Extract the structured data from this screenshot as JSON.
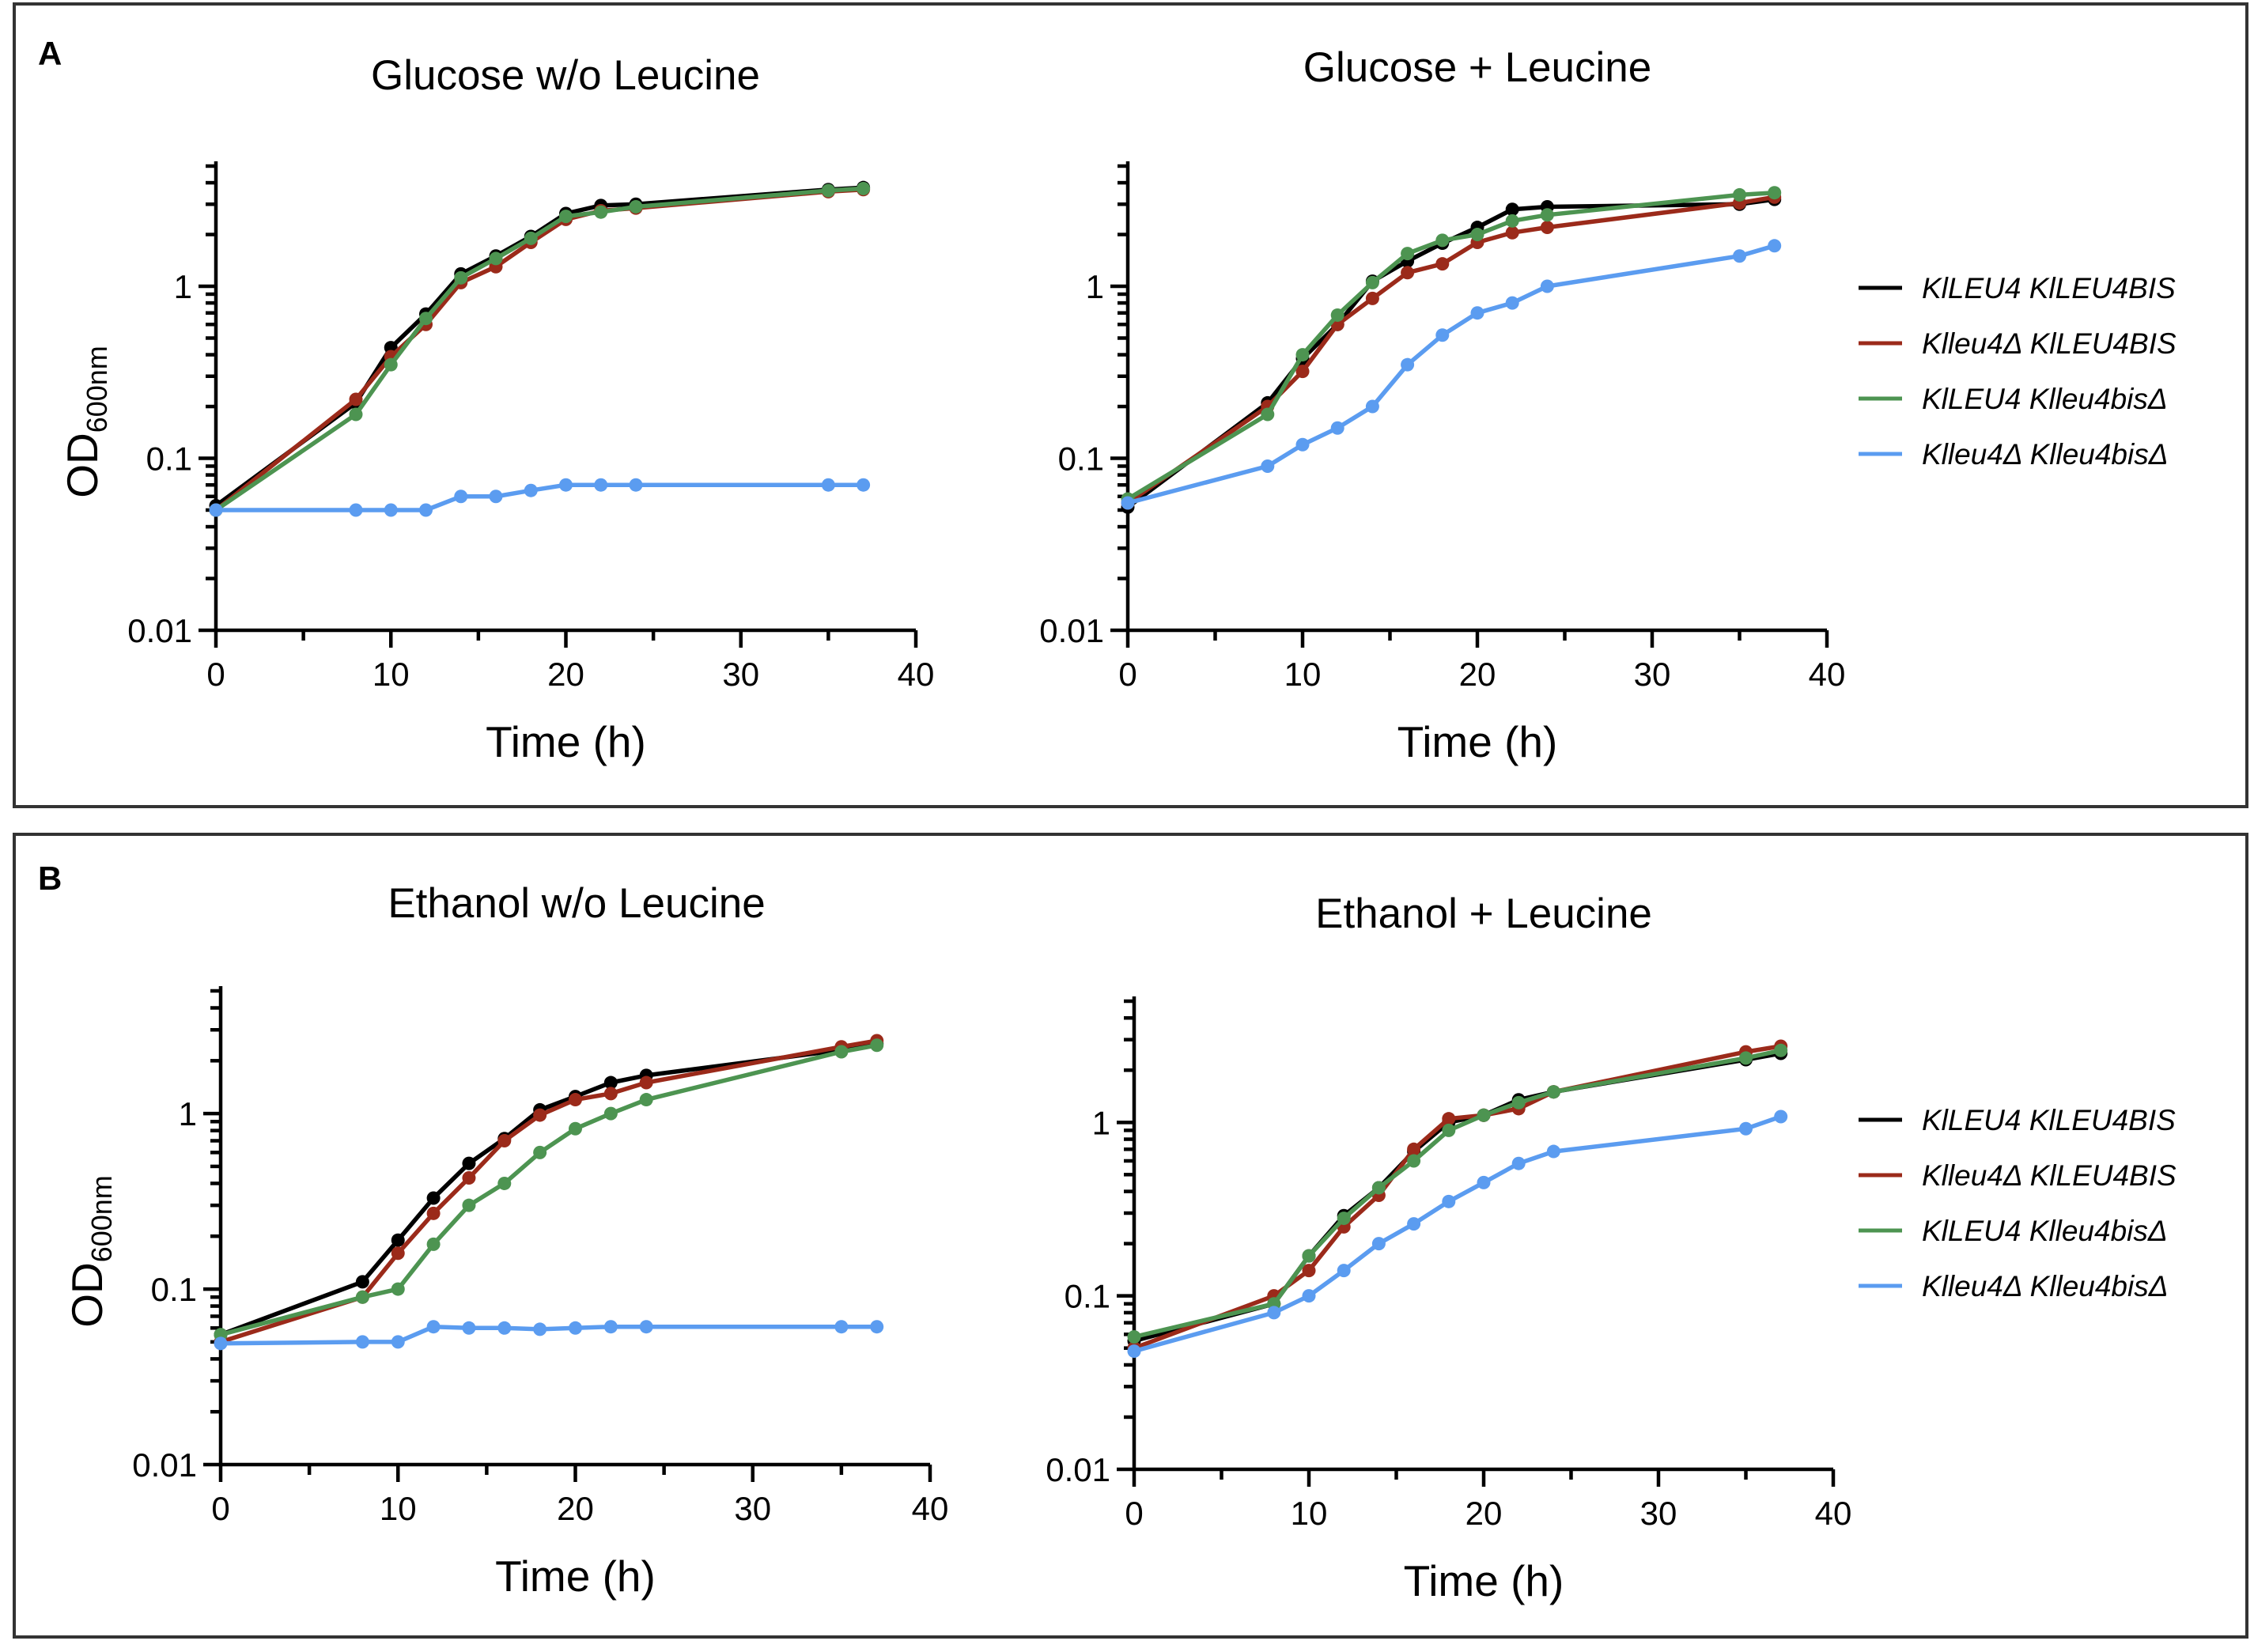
{
  "figure": {
    "panels": [
      {
        "letter": "A"
      },
      {
        "letter": "B"
      }
    ]
  },
  "chart_data": [
    {
      "type": "line",
      "panel": "A",
      "title": "Glucose w/o Leucine",
      "xlabel": "Time (h)",
      "ylabel_main": "OD",
      "ylabel_sub": "600nm",
      "xlim": [
        0,
        40
      ],
      "ylim": [
        0.01,
        5
      ],
      "yscale": "log",
      "xticks": [
        0,
        10,
        20,
        30,
        40
      ],
      "yticks": [
        0.01,
        0.1,
        1
      ],
      "yticks_labels": [
        "0.01",
        "0.1",
        "1"
      ],
      "legend": true,
      "series": [
        {
          "name": "KlLEU4 KlLEU4BIS",
          "color": "#000000",
          "points": [
            [
              0,
              0.053
            ],
            [
              8,
              0.21
            ],
            [
              10,
              0.44
            ],
            [
              12,
              0.69
            ],
            [
              14,
              1.18
            ],
            [
              16,
              1.5
            ],
            [
              18,
              1.95
            ],
            [
              20,
              2.65
            ],
            [
              22,
              2.95
            ],
            [
              24,
              3.0
            ],
            [
              35,
              3.65
            ],
            [
              37,
              3.75
            ]
          ]
        },
        {
          "name": "Klleu4Δ KlLEU4BIS",
          "color": "#9b2a1a",
          "points": [
            [
              0,
              0.05
            ],
            [
              8,
              0.22
            ],
            [
              10,
              0.39
            ],
            [
              12,
              0.6
            ],
            [
              14,
              1.05
            ],
            [
              16,
              1.3
            ],
            [
              18,
              1.8
            ],
            [
              20,
              2.45
            ],
            [
              22,
              2.75
            ],
            [
              24,
              2.85
            ],
            [
              35,
              3.55
            ],
            [
              37,
              3.65
            ]
          ]
        },
        {
          "name": "KlLEU4 Klleu4bisΔ",
          "color": "#4d9451",
          "points": [
            [
              0,
              0.05
            ],
            [
              8,
              0.18
            ],
            [
              10,
              0.35
            ],
            [
              12,
              0.65
            ],
            [
              14,
              1.12
            ],
            [
              16,
              1.45
            ],
            [
              18,
              1.9
            ],
            [
              20,
              2.55
            ],
            [
              22,
              2.7
            ],
            [
              24,
              2.9
            ],
            [
              35,
              3.6
            ],
            [
              37,
              3.7
            ]
          ]
        },
        {
          "name": "Klleu4Δ Klleu4bisΔ",
          "color": "#5b9cf0",
          "points": [
            [
              0,
              0.05
            ],
            [
              8,
              0.05
            ],
            [
              10,
              0.05
            ],
            [
              12,
              0.05
            ],
            [
              14,
              0.06
            ],
            [
              16,
              0.06
            ],
            [
              18,
              0.065
            ],
            [
              20,
              0.07
            ],
            [
              22,
              0.07
            ],
            [
              24,
              0.07
            ],
            [
              35,
              0.07
            ],
            [
              37,
              0.07
            ]
          ]
        }
      ]
    },
    {
      "type": "line",
      "panel": "A",
      "title": "Glucose + Leucine",
      "xlabel": "Time (h)",
      "ylabel_main": "",
      "ylabel_sub": "",
      "xlim": [
        0,
        40
      ],
      "ylim": [
        0.01,
        5
      ],
      "yscale": "log",
      "xticks": [
        0,
        10,
        20,
        30,
        40
      ],
      "yticks": [
        0.01,
        0.1,
        1
      ],
      "yticks_labels": [
        "0.01",
        "0.1",
        "1"
      ],
      "legend": true,
      "series": [
        {
          "name": "KlLEU4 KlLEU4BIS",
          "color": "#000000",
          "points": [
            [
              0,
              0.052
            ],
            [
              8,
              0.21
            ],
            [
              10,
              0.38
            ],
            [
              12,
              0.6
            ],
            [
              14,
              1.07
            ],
            [
              16,
              1.4
            ],
            [
              18,
              1.78
            ],
            [
              20,
              2.2
            ],
            [
              22,
              2.8
            ],
            [
              24,
              2.9
            ],
            [
              35,
              3.0
            ],
            [
              37,
              3.2
            ]
          ]
        },
        {
          "name": "Klleu4Δ KlLEU4BIS",
          "color": "#9b2a1a",
          "points": [
            [
              0,
              0.055
            ],
            [
              8,
              0.2
            ],
            [
              10,
              0.32
            ],
            [
              12,
              0.6
            ],
            [
              14,
              0.85
            ],
            [
              16,
              1.2
            ],
            [
              18,
              1.35
            ],
            [
              20,
              1.8
            ],
            [
              22,
              2.05
            ],
            [
              24,
              2.2
            ],
            [
              35,
              3.05
            ],
            [
              37,
              3.3
            ]
          ]
        },
        {
          "name": "KlLEU4 Klleu4bisΔ",
          "color": "#4d9451",
          "points": [
            [
              0,
              0.058
            ],
            [
              8,
              0.18
            ],
            [
              10,
              0.4
            ],
            [
              12,
              0.68
            ],
            [
              14,
              1.05
            ],
            [
              16,
              1.55
            ],
            [
              18,
              1.85
            ],
            [
              20,
              2.0
            ],
            [
              22,
              2.4
            ],
            [
              24,
              2.6
            ],
            [
              35,
              3.4
            ],
            [
              37,
              3.5
            ]
          ]
        },
        {
          "name": "Klleu4Δ Klleu4bisΔ",
          "color": "#5b9cf0",
          "points": [
            [
              0,
              0.055
            ],
            [
              8,
              0.09
            ],
            [
              10,
              0.12
            ],
            [
              12,
              0.15
            ],
            [
              14,
              0.2
            ],
            [
              16,
              0.35
            ],
            [
              18,
              0.52
            ],
            [
              20,
              0.7
            ],
            [
              22,
              0.8
            ],
            [
              24,
              1.0
            ],
            [
              35,
              1.5
            ],
            [
              37,
              1.72
            ]
          ]
        }
      ]
    },
    {
      "type": "line",
      "panel": "B",
      "title": "Ethanol w/o Leucine",
      "xlabel": "Time (h)",
      "ylabel_main": "OD",
      "ylabel_sub": "600nm",
      "xlim": [
        0,
        40
      ],
      "ylim": [
        0.01,
        5
      ],
      "yscale": "log",
      "xticks": [
        0,
        10,
        20,
        30,
        40
      ],
      "yticks": [
        0.01,
        0.1,
        1
      ],
      "yticks_labels": [
        "0.01",
        "0.1",
        "1"
      ],
      "legend": true,
      "series": [
        {
          "name": "KlLEU4 KlLEU4BIS",
          "color": "#000000",
          "points": [
            [
              0,
              0.055
            ],
            [
              8,
              0.11
            ],
            [
              10,
              0.19
            ],
            [
              12,
              0.33
            ],
            [
              14,
              0.52
            ],
            [
              16,
              0.72
            ],
            [
              18,
              1.05
            ],
            [
              20,
              1.25
            ],
            [
              22,
              1.5
            ],
            [
              24,
              1.65
            ],
            [
              35,
              2.3
            ],
            [
              37,
              2.5
            ]
          ]
        },
        {
          "name": "Klleu4Δ KlLEU4BIS",
          "color": "#9b2a1a",
          "points": [
            [
              0,
              0.05
            ],
            [
              8,
              0.09
            ],
            [
              10,
              0.16
            ],
            [
              12,
              0.27
            ],
            [
              14,
              0.43
            ],
            [
              16,
              0.7
            ],
            [
              18,
              0.98
            ],
            [
              20,
              1.2
            ],
            [
              22,
              1.3
            ],
            [
              24,
              1.5
            ],
            [
              35,
              2.4
            ],
            [
              37,
              2.6
            ]
          ]
        },
        {
          "name": "KlLEU4 Klleu4bisΔ",
          "color": "#4d9451",
          "points": [
            [
              0,
              0.055
            ],
            [
              8,
              0.09
            ],
            [
              10,
              0.1
            ],
            [
              12,
              0.18
            ],
            [
              14,
              0.3
            ],
            [
              16,
              0.4
            ],
            [
              18,
              0.6
            ],
            [
              20,
              0.82
            ],
            [
              22,
              1.0
            ],
            [
              24,
              1.2
            ],
            [
              35,
              2.25
            ],
            [
              37,
              2.45
            ]
          ]
        },
        {
          "name": "Klleu4Δ Klleu4bisΔ",
          "color": "#5b9cf0",
          "points": [
            [
              0,
              0.049
            ],
            [
              8,
              0.05
            ],
            [
              10,
              0.05
            ],
            [
              12,
              0.061
            ],
            [
              14,
              0.06
            ],
            [
              16,
              0.06
            ],
            [
              18,
              0.059
            ],
            [
              20,
              0.06
            ],
            [
              22,
              0.061
            ],
            [
              24,
              0.061
            ],
            [
              35,
              0.061
            ],
            [
              37,
              0.061
            ]
          ]
        }
      ]
    },
    {
      "type": "line",
      "panel": "B",
      "title": "Ethanol + Leucine",
      "xlabel": "Time (h)",
      "ylabel_main": "",
      "ylabel_sub": "",
      "xlim": [
        0,
        40
      ],
      "ylim": [
        0.01,
        5
      ],
      "yscale": "log",
      "xticks": [
        0,
        10,
        20,
        30,
        40
      ],
      "yticks": [
        0.01,
        0.1,
        1
      ],
      "yticks_labels": [
        "0.01",
        "0.1",
        "1"
      ],
      "legend": true,
      "series": [
        {
          "name": "KlLEU4 KlLEU4BIS",
          "color": "#000000",
          "points": [
            [
              0,
              0.055
            ],
            [
              8,
              0.09
            ],
            [
              10,
              0.17
            ],
            [
              12,
              0.29
            ],
            [
              14,
              0.42
            ],
            [
              16,
              0.68
            ],
            [
              18,
              1.0
            ],
            [
              20,
              1.1
            ],
            [
              22,
              1.35
            ],
            [
              24,
              1.5
            ],
            [
              35,
              2.3
            ],
            [
              37,
              2.5
            ]
          ]
        },
        {
          "name": "Klleu4Δ KlLEU4BIS",
          "color": "#9b2a1a",
          "points": [
            [
              0,
              0.05
            ],
            [
              8,
              0.1
            ],
            [
              10,
              0.14
            ],
            [
              12,
              0.25
            ],
            [
              14,
              0.38
            ],
            [
              16,
              0.7
            ],
            [
              18,
              1.05
            ],
            [
              20,
              1.1
            ],
            [
              22,
              1.2
            ],
            [
              24,
              1.5
            ],
            [
              35,
              2.55
            ],
            [
              37,
              2.75
            ]
          ]
        },
        {
          "name": "KlLEU4 Klleu4bisΔ",
          "color": "#4d9451",
          "points": [
            [
              0,
              0.058
            ],
            [
              8,
              0.09
            ],
            [
              10,
              0.17
            ],
            [
              12,
              0.28
            ],
            [
              14,
              0.42
            ],
            [
              16,
              0.6
            ],
            [
              18,
              0.9
            ],
            [
              20,
              1.1
            ],
            [
              22,
              1.3
            ],
            [
              24,
              1.5
            ],
            [
              35,
              2.35
            ],
            [
              37,
              2.6
            ]
          ]
        },
        {
          "name": "Klleu4Δ Klleu4bisΔ",
          "color": "#5b9cf0",
          "points": [
            [
              0,
              0.048
            ],
            [
              8,
              0.08
            ],
            [
              10,
              0.1
            ],
            [
              12,
              0.14
            ],
            [
              14,
              0.2
            ],
            [
              16,
              0.26
            ],
            [
              18,
              0.35
            ],
            [
              20,
              0.45
            ],
            [
              22,
              0.58
            ],
            [
              24,
              0.68
            ],
            [
              35,
              0.92
            ],
            [
              37,
              1.08
            ]
          ]
        }
      ]
    }
  ]
}
